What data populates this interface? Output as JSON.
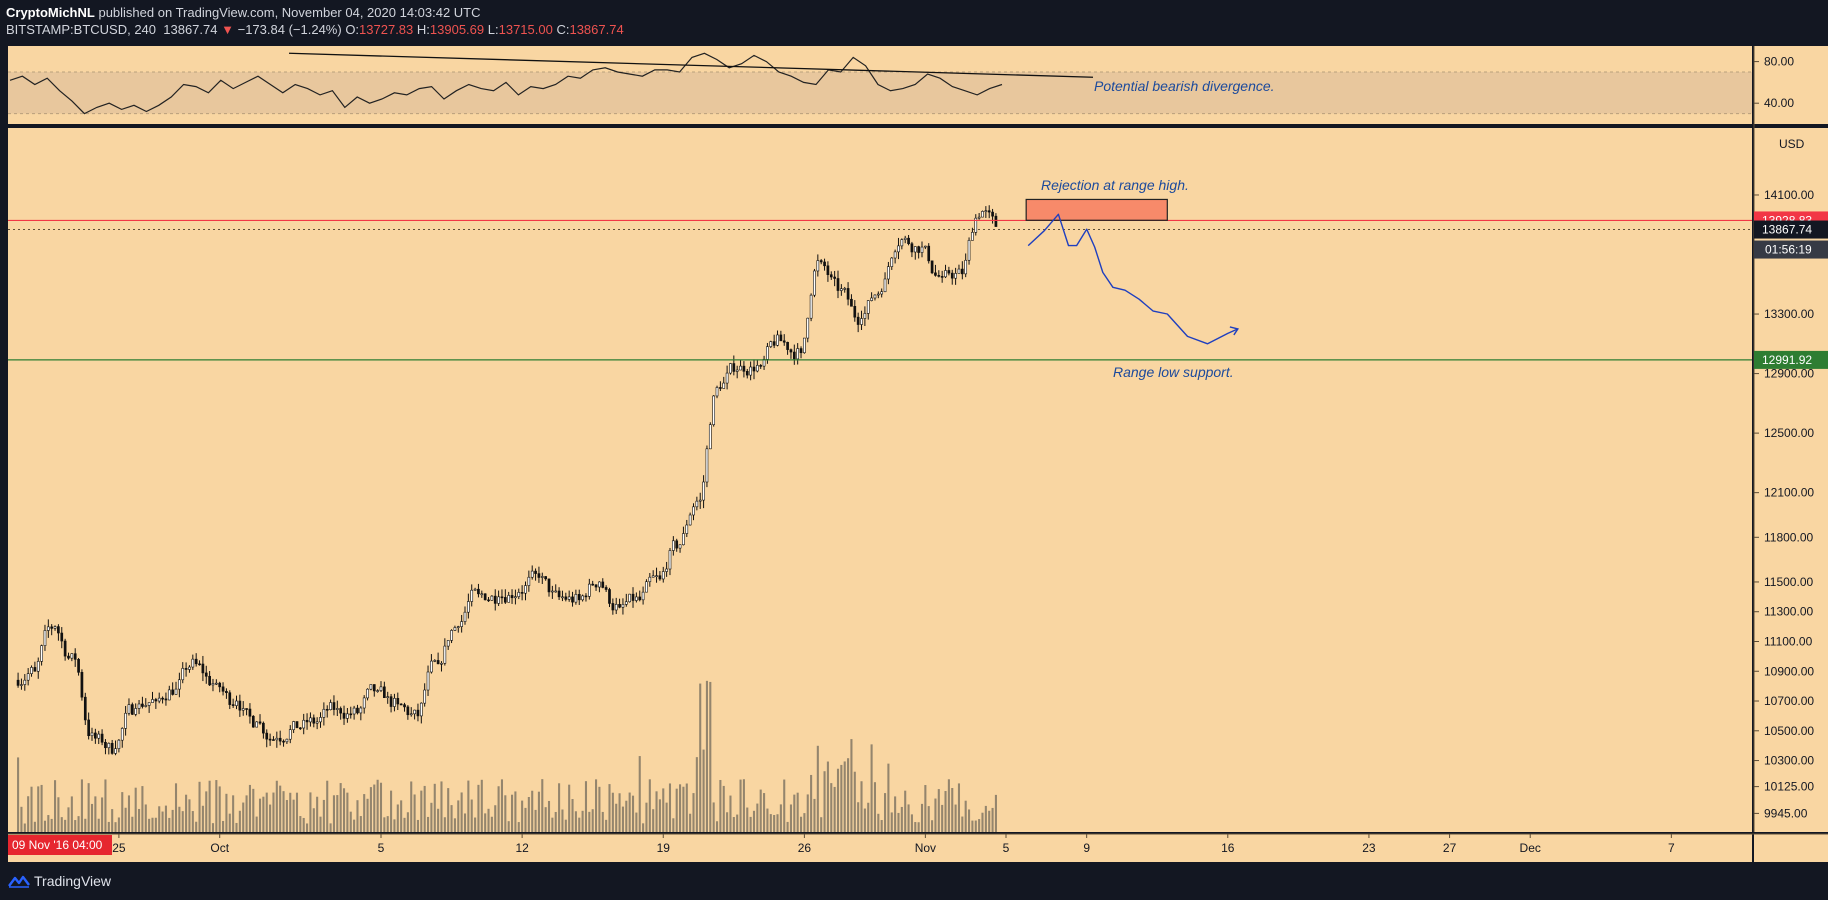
{
  "header": {
    "author": "CryptoMichNL",
    "published_text": "published on TradingView.com, November 04, 2020 14:03:42 UTC",
    "symbol": "BITSTAMP:BTCUSD, 240",
    "last": "13867.74",
    "change": "−173.84 (−1.24%)",
    "open_label": "O:",
    "open": "13727.83",
    "high_label": "H:",
    "high": "13905.69",
    "low_label": "L:",
    "low": "13715.00",
    "close_label": "C:",
    "close": "13867.74",
    "down_arrow": "▼"
  },
  "footer": {
    "brand": "TradingView",
    "logo_icon": "tradingview-logo-icon"
  },
  "colors": {
    "background": "#f9d6a2",
    "rsi_band": "#e8c79d",
    "resistance": "#f23645",
    "support": "#2e7d32",
    "projection": "#1f3fbf",
    "annotation": "#1c4a9c",
    "volume": "#7a7060"
  },
  "chart_data": [
    {
      "type": "line",
      "name": "RSI",
      "yticks": [
        "80.00",
        "40.00"
      ],
      "ylim": [
        20,
        95
      ],
      "band": [
        30,
        70
      ],
      "divergence_line": {
        "from": [
          45,
          88
        ],
        "to": [
          165,
          64
        ]
      },
      "annotation": "Potential bearish divergence.",
      "x": [
        0,
        2,
        4,
        6,
        8,
        10,
        12,
        14,
        16,
        18,
        20,
        22,
        24,
        26,
        28,
        30,
        32,
        34,
        36,
        38,
        40,
        42,
        44,
        46,
        48,
        50,
        52,
        54,
        56,
        58,
        60,
        62,
        64,
        66,
        68,
        70,
        72,
        74,
        76,
        78,
        80,
        82,
        84,
        86,
        88,
        90,
        92,
        94,
        96,
        98,
        100,
        102,
        104,
        106,
        108,
        110,
        112,
        114,
        116,
        118,
        120,
        122,
        124,
        126,
        128,
        130,
        132,
        134,
        136,
        138,
        140,
        142,
        144,
        146,
        148,
        150,
        152,
        154,
        156,
        158,
        160
      ],
      "values": [
        62,
        66,
        58,
        64,
        52,
        42,
        30,
        36,
        40,
        34,
        38,
        32,
        38,
        46,
        58,
        56,
        50,
        62,
        54,
        60,
        66,
        58,
        50,
        58,
        54,
        48,
        52,
        36,
        46,
        40,
        44,
        50,
        48,
        54,
        56,
        44,
        52,
        58,
        54,
        52,
        60,
        48,
        56,
        54,
        58,
        66,
        64,
        72,
        74,
        70,
        68,
        66,
        72,
        72,
        70,
        84,
        88,
        82,
        74,
        78,
        86,
        80,
        70,
        66,
        60,
        58,
        72,
        70,
        84,
        76,
        58,
        52,
        54,
        58,
        68,
        64,
        56,
        52,
        48,
        54,
        58
      ]
    },
    {
      "type": "candlestick",
      "symbol": "BITSTAMP:BTCUSD",
      "interval": "240",
      "currency": "USD",
      "yticks": [
        "14100.00",
        "13300.00",
        "12900.00",
        "12500.00",
        "12100.00",
        "11800.00",
        "11500.00",
        "11300.00",
        "11100.00",
        "10900.00",
        "10700.00",
        "10500.00",
        "10300.00",
        "10125.00",
        "9945.00"
      ],
      "ylim": [
        9820,
        14550
      ],
      "xticks": [
        "25",
        "Oct",
        "5",
        "12",
        "19",
        "26",
        "Nov",
        "5",
        "9",
        "16",
        "23",
        "27",
        "Dec",
        "7"
      ],
      "xtick_days": [
        -8,
        -3,
        5,
        12,
        19,
        26,
        32,
        36,
        40,
        47,
        54,
        58,
        62,
        69
      ],
      "xlim": [
        -13.5,
        73
      ],
      "first_bar_label": "09 Nov '16   04:00",
      "resistance": 13928.83,
      "resistance_label": "13928.83",
      "support": 12991.92,
      "support_label": "12991.92",
      "last_price": 13867.74,
      "last_price_label": "13867.74",
      "countdown": "01:56:19",
      "annotations": [
        "Rejection at range high.",
        "Range low support."
      ],
      "rejection_zone": {
        "from_day": 37,
        "to_day": 44,
        "low": 13930,
        "high": 14070
      },
      "projection_path": [
        [
          37.1,
          13760
        ],
        [
          37.9,
          13860
        ],
        [
          38.6,
          13970
        ],
        [
          39.1,
          13760
        ],
        [
          39.5,
          13760
        ],
        [
          40.0,
          13870
        ],
        [
          40.4,
          13750
        ],
        [
          40.8,
          13580
        ],
        [
          41.3,
          13480
        ],
        [
          41.9,
          13460
        ],
        [
          42.6,
          13400
        ],
        [
          43.3,
          13320
        ],
        [
          44.0,
          13300
        ],
        [
          45.0,
          13150
        ],
        [
          46.0,
          13100
        ],
        [
          47.0,
          13170
        ],
        [
          47.5,
          13200
        ]
      ],
      "daily_closes": [
        {
          "day": -13,
          "close": 10900
        },
        {
          "day": -12,
          "close": 11200
        },
        {
          "day": -11,
          "close": 10980
        },
        {
          "day": -10,
          "close": 10450
        },
        {
          "day": -9,
          "close": 10380
        },
        {
          "day": -8,
          "close": 10650
        },
        {
          "day": -7,
          "close": 10700
        },
        {
          "day": -6,
          "close": 10780
        },
        {
          "day": -5,
          "close": 10950
        },
        {
          "day": -4,
          "close": 10820
        },
        {
          "day": -3,
          "close": 10700
        },
        {
          "day": -2,
          "close": 10560
        },
        {
          "day": -1,
          "close": 10450
        },
        {
          "day": 0,
          "close": 10520
        },
        {
          "day": 1,
          "close": 10560
        },
        {
          "day": 2,
          "close": 10650
        },
        {
          "day": 3,
          "close": 10620
        },
        {
          "day": 4,
          "close": 10770
        },
        {
          "day": 5,
          "close": 10680
        },
        {
          "day": 6,
          "close": 10600
        },
        {
          "day": 7,
          "close": 10950
        },
        {
          "day": 8,
          "close": 11200
        },
        {
          "day": 9,
          "close": 11420
        },
        {
          "day": 10,
          "close": 11400
        },
        {
          "day": 11,
          "close": 11430
        },
        {
          "day": 12,
          "close": 11530
        },
        {
          "day": 13,
          "close": 11400
        },
        {
          "day": 14,
          "close": 11380
        },
        {
          "day": 15,
          "close": 11500
        },
        {
          "day": 16,
          "close": 11330
        },
        {
          "day": 17,
          "close": 11380
        },
        {
          "day": 18,
          "close": 11520
        },
        {
          "day": 19,
          "close": 11750
        },
        {
          "day": 20,
          "close": 12050
        },
        {
          "day": 21,
          "close": 12800
        },
        {
          "day": 22,
          "close": 12950
        },
        {
          "day": 23,
          "close": 12950
        },
        {
          "day": 24,
          "close": 13120
        },
        {
          "day": 25,
          "close": 13040
        },
        {
          "day": 26,
          "close": 13650
        },
        {
          "day": 27,
          "close": 13470
        },
        {
          "day": 28,
          "close": 13270
        },
        {
          "day": 29,
          "close": 13450
        },
        {
          "day": 30,
          "close": 13800
        },
        {
          "day": 31,
          "close": 13750
        },
        {
          "day": 32,
          "close": 13550
        },
        {
          "day": 33,
          "close": 13570
        },
        {
          "day": 34,
          "close": 13990
        },
        {
          "day": 35,
          "close": 13870
        }
      ]
    }
  ]
}
